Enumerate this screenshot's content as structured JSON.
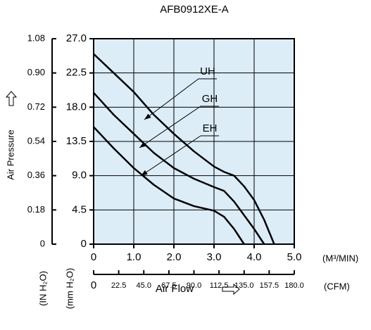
{
  "chart_data": {
    "type": "line",
    "title": "AFB0912XE-A",
    "ylabel": "Air Pressure",
    "xlabel": "Air Flow",
    "x_unit": "(M³/MIN)",
    "x2_unit": "(CFM)",
    "y_unit": "(mm H₂O)",
    "y2_unit": "(IN H₂O)",
    "plot_color": "#dcedf8",
    "grid": true,
    "x": [
      0,
      0.5,
      1,
      1.5,
      2,
      2.5,
      3,
      3.25,
      3.5,
      3.75,
      4,
      4.25,
      4.5
    ],
    "series": [
      {
        "name": "UH",
        "color": "#000000",
        "values": [
          25.0,
          22.5,
          20.0,
          17.0,
          14.5,
          12.2,
          10.2,
          9.5,
          9.0,
          7.6,
          5.8,
          3.2,
          0
        ]
      },
      {
        "name": "GH",
        "color": "#000000",
        "values": [
          19.9,
          17.0,
          14.5,
          12.0,
          10.0,
          8.6,
          7.5,
          7.0,
          5.6,
          3.8,
          2.0,
          0,
          null
        ]
      },
      {
        "name": "EH",
        "color": "#000000",
        "values": [
          15.4,
          12.6,
          10.0,
          7.8,
          6.0,
          5.0,
          4.4,
          3.6,
          2.0,
          0,
          null,
          null,
          null
        ]
      }
    ],
    "xlim": [
      0,
      5
    ],
    "xticks": [
      0,
      {
        "value": 1,
        "label": "1.0"
      },
      {
        "value": 2,
        "label": "2.0"
      },
      {
        "value": 3,
        "label": "3.0"
      },
      {
        "value": 4,
        "label": "4.0"
      },
      {
        "value": 5,
        "label": "5.0"
      }
    ],
    "x2lim": [
      0,
      180
    ],
    "x2ticks": [
      0,
      22.5,
      {
        "value": 45,
        "label": "45.0"
      },
      67.5,
      {
        "value": 90,
        "label": "90.0"
      },
      112.5,
      {
        "value": 135,
        "label": "135.0"
      },
      157.5,
      {
        "value": 180,
        "label": "180.0"
      }
    ],
    "ylim": [
      0,
      27
    ],
    "yticks": [
      0,
      4.5,
      {
        "value": 9,
        "label": "9.0"
      },
      13.5,
      {
        "value": 18,
        "label": "18.0"
      },
      22.5,
      {
        "value": 27,
        "label": "27.0"
      }
    ],
    "y2lim": [
      0,
      1.08
    ],
    "y2ticks": [
      0,
      0.18,
      0.36,
      0.54,
      0.72,
      {
        "value": 0.9,
        "label": "0.90"
      },
      1.08
    ]
  }
}
